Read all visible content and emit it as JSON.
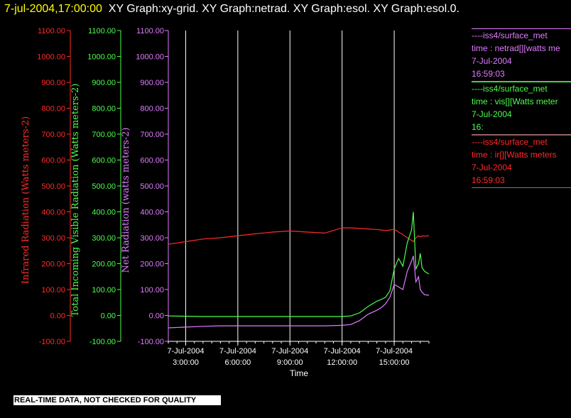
{
  "header": {
    "datetime": "7-jul-2004,17:00:00",
    "graphs": "XY Graph:xy-grid.  XY Graph:netrad.  XY Graph:esol.  XY Graph:esol.0."
  },
  "colors": {
    "ir": "#ff2a2a",
    "vis": "#4cff4c",
    "net": "#e07cff",
    "axis": "#ffffff",
    "grid": "#ffffff"
  },
  "disclaimer": "REAL-TIME DATA, NOT CHECKED FOR QUALITY",
  "legend": [
    {
      "series": "netrad",
      "color": "#e07cff",
      "source": "----iss4/surface_met",
      "variable": "time : netrad[][watts me",
      "date": "7-Jul-2004",
      "time": "16:59:03"
    },
    {
      "series": "vis",
      "color": "#4cff4c",
      "source": "----iss4/surface_met",
      "variable": "time : vis[][Watts meter",
      "date": "7-Jul-2004",
      "time": "16:"
    },
    {
      "series": "ir",
      "color": "#ff2a2a",
      "source": "----iss4/surface_met",
      "variable": "time : ir[][Watts meters",
      "date": "7-Jul-2004",
      "time": "16:59:03"
    }
  ],
  "chart_data": {
    "type": "line",
    "xlabel": "Time",
    "x_ticks": [
      {
        "date": "7-Jul-2004",
        "time": "3:00:00",
        "hour": 3
      },
      {
        "date": "7-Jul-2004",
        "time": "6:00:00",
        "hour": 6
      },
      {
        "date": "7-Jul-2004",
        "time": "9:00:00",
        "hour": 9
      },
      {
        "date": "7-Jul-2004",
        "time": "12:00:00",
        "hour": 12
      },
      {
        "date": "7-Jul-2004",
        "time": "15:00:00",
        "hour": 15
      }
    ],
    "xlim": [
      2.0,
      17.0
    ],
    "ylim": [
      -100,
      1100
    ],
    "y_ticks": [
      "-100.00",
      "0.00",
      "100.00",
      "200.00",
      "300.00",
      "400.00",
      "500.00",
      "600.00",
      "700.00",
      "800.00",
      "900.00",
      "1000.00",
      "1100.00"
    ],
    "y_axes": [
      {
        "key": "ir",
        "label": "Infrared Radiation (Watts meters-2)",
        "color": "#ff2a2a"
      },
      {
        "key": "vis",
        "label": "Total Incoming Visible Radiation (Watts meters-2)",
        "color": "#4cff4c"
      },
      {
        "key": "net",
        "label": "Net Radiation (watts meters-2)",
        "color": "#e07cff"
      }
    ],
    "x_hours": [
      2.0,
      3,
      4,
      5,
      6,
      7,
      8,
      9,
      10,
      11,
      12,
      12.5,
      13,
      13.5,
      14,
      14.25,
      14.5,
      14.75,
      15,
      15.25,
      15.5,
      15.75,
      16,
      16.1,
      16.25,
      16.4,
      16.5,
      16.6,
      16.75,
      17.0
    ],
    "series": [
      {
        "name": "ir",
        "color": "#ff2a2a",
        "values": [
          275,
          285,
          295,
          300,
          308,
          315,
          322,
          326,
          322,
          318,
          338,
          338,
          336,
          334,
          332,
          330,
          328,
          330,
          333,
          322,
          312,
          300,
          290,
          285,
          300,
          308,
          303,
          307,
          306,
          308
        ]
      },
      {
        "name": "vis",
        "color": "#4cff4c",
        "values": [
          -2,
          -3,
          -4,
          -4,
          -4,
          -4,
          -4,
          -4,
          -4,
          -4,
          -4,
          -2,
          10,
          35,
          55,
          62,
          70,
          95,
          180,
          220,
          190,
          280,
          330,
          400,
          180,
          200,
          240,
          185,
          170,
          160
        ]
      },
      {
        "name": "net",
        "color": "#e07cff",
        "values": [
          -48,
          -45,
          -42,
          -40,
          -40,
          -40,
          -40,
          -40,
          -40,
          -40,
          -38,
          -35,
          -20,
          5,
          20,
          30,
          45,
          70,
          120,
          110,
          100,
          170,
          210,
          230,
          130,
          150,
          100,
          90,
          80,
          78
        ]
      }
    ]
  }
}
